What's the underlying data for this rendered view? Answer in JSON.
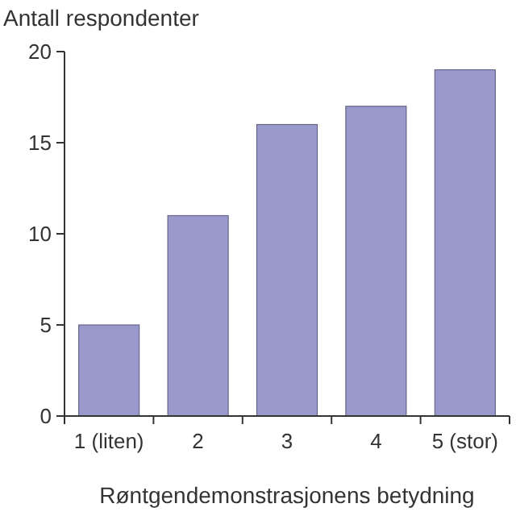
{
  "chart_data": {
    "type": "bar",
    "ylabel": "Antall respondenter",
    "xlabel": "Røntgendemonstrasjonens betydning",
    "categories": [
      "1 (liten)",
      "2",
      "3",
      "4",
      "5 (stor)"
    ],
    "values": [
      5,
      11,
      16,
      17,
      19
    ],
    "color": "#9999cc",
    "ylim": [
      0,
      20
    ],
    "yticks": [
      0,
      5,
      10,
      15,
      20
    ],
    "grid": false
  }
}
